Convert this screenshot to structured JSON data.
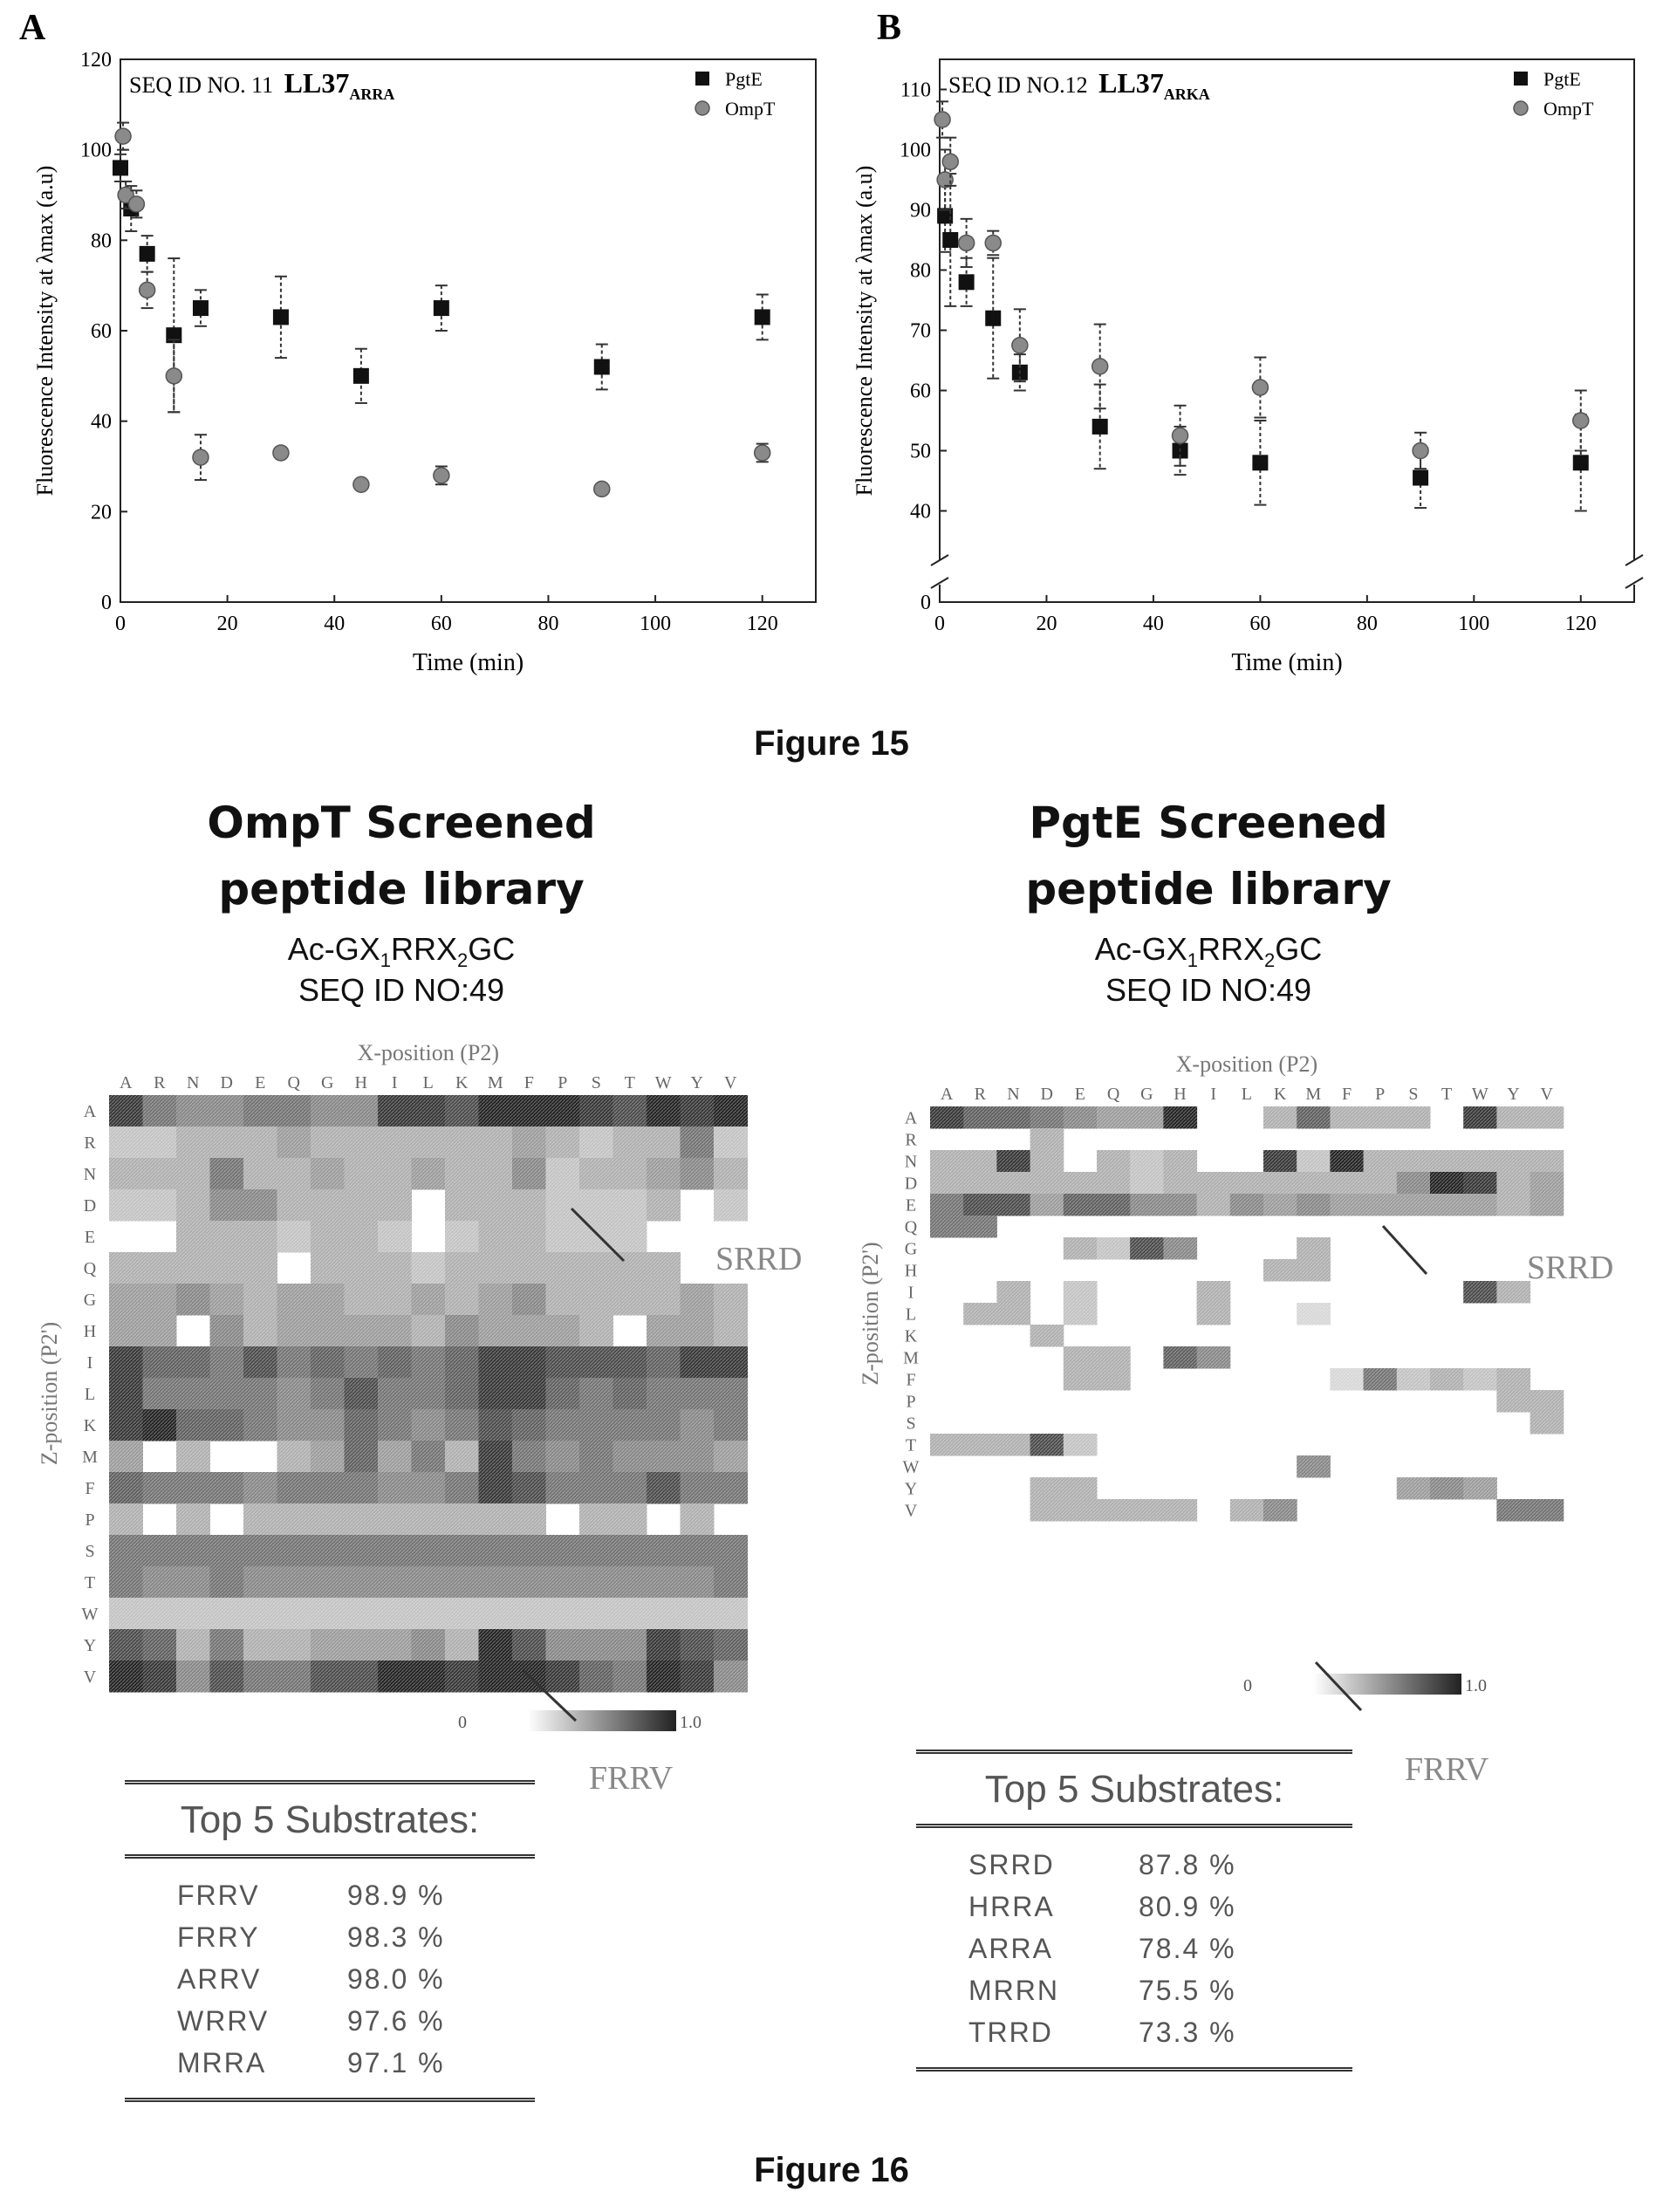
{
  "figure15": {
    "caption": "Figure 15",
    "colors": {
      "pgte": "#111111",
      "ompt": "#8a8a8a",
      "axis": "#222222"
    }
  },
  "chart_data": [
    {
      "type": "scatter",
      "panel_label": "A",
      "seq_label": "SEQ ID NO. 11",
      "peptide": "LL37",
      "peptide_sub": "ARRA",
      "xlabel": "Time (min)",
      "ylabel": "Fluorescence Intensity at λmax (a.u)",
      "xlim": [
        0,
        130
      ],
      "ylim": [
        0,
        120
      ],
      "xticks": [
        0,
        20,
        40,
        60,
        80,
        100,
        120
      ],
      "yticks": [
        0,
        20,
        40,
        60,
        80,
        100,
        120
      ],
      "legend": "top-right",
      "series": [
        {
          "name": "PgtE",
          "marker": "square",
          "x": [
            0,
            2,
            5,
            10,
            15,
            30,
            45,
            60,
            90,
            120
          ],
          "y": [
            96,
            87,
            77,
            59,
            65,
            63,
            50,
            65,
            52,
            63
          ],
          "err": [
            3,
            5,
            4,
            17,
            4,
            9,
            6,
            5,
            5,
            5
          ]
        },
        {
          "name": "OmpT",
          "marker": "circle",
          "x": [
            0.5,
            1,
            3,
            5,
            10,
            15,
            30,
            45,
            60,
            90,
            120
          ],
          "y": [
            103,
            90,
            88,
            69,
            50,
            32,
            33,
            26,
            28,
            25,
            33
          ],
          "err": [
            3,
            3,
            3,
            4,
            8,
            5,
            1,
            1,
            2,
            1,
            2
          ]
        }
      ]
    },
    {
      "type": "scatter",
      "panel_label": "B",
      "seq_label": "SEQ ID NO.12",
      "peptide": "LL37",
      "peptide_sub": "ARKA",
      "xlabel": "Time (min)",
      "ylabel": "Fluorescence Intensity at λmax (a.u)",
      "xlim": [
        0,
        130
      ],
      "ylim": [
        0,
        115
      ],
      "axis_break": true,
      "xticks": [
        0,
        20,
        40,
        60,
        80,
        100,
        120
      ],
      "yticks": [
        0,
        40,
        50,
        60,
        70,
        80,
        90,
        100,
        110
      ],
      "legend": "top-right",
      "series": [
        {
          "name": "PgtE",
          "marker": "square",
          "x": [
            1,
            2,
            5,
            10,
            15,
            30,
            45,
            60,
            90,
            120
          ],
          "y": [
            89,
            85,
            78,
            72,
            63,
            54,
            50,
            48,
            45.5,
            48
          ],
          "err": [
            6,
            11,
            4,
            10,
            3,
            7,
            4,
            7,
            5,
            8
          ]
        },
        {
          "name": "OmpT",
          "marker": "circle",
          "x": [
            0.5,
            1,
            2,
            5,
            10,
            15,
            30,
            45,
            60,
            90,
            120
          ],
          "y": [
            105,
            95,
            98,
            84.5,
            84.5,
            67.5,
            64,
            52.5,
            60.5,
            50,
            55
          ],
          "err": [
            3,
            5,
            4,
            4,
            2,
            6,
            7,
            5,
            5,
            3,
            5
          ]
        }
      ]
    }
  ],
  "figure16": {
    "caption": "Figure 16",
    "axis_letters": [
      "A",
      "R",
      "N",
      "D",
      "E",
      "Q",
      "G",
      "H",
      "I",
      "L",
      "K",
      "M",
      "F",
      "P",
      "S",
      "T",
      "W",
      "Y",
      "V"
    ],
    "x_axis_label": "X-position (P2)",
    "y_axis_label": "Z-position (P2')",
    "scale_min": "0",
    "scale_max": "1.0",
    "left": {
      "title_line1": "OmpT Screened",
      "title_line2": "peptide library",
      "formula": "Ac-GX1RRX2GC",
      "seq": "SEQ ID NO:49",
      "callout_top": "SRRD",
      "callout_bottom": "FRRV",
      "top_header": "Top 5 Substrates:",
      "top5": [
        {
          "seq": "FRRV",
          "pct": "98.9 %"
        },
        {
          "seq": "FRRY",
          "pct": "98.3 %"
        },
        {
          "seq": "ARRV",
          "pct": "98.0 %"
        },
        {
          "seq": "WRRV",
          "pct": "97.6 %"
        },
        {
          "seq": "MRRA",
          "pct": "97.1 %"
        }
      ],
      "heatmap": [
        [
          0.9,
          0.6,
          0.5,
          0.5,
          0.6,
          0.6,
          0.5,
          0.5,
          0.9,
          0.9,
          0.8,
          1.0,
          1.0,
          1.0,
          0.9,
          0.8,
          1.0,
          0.9,
          1.0
        ],
        [
          0.2,
          0.2,
          0.3,
          0.3,
          0.3,
          0.4,
          0.3,
          0.3,
          0.3,
          0.3,
          0.3,
          0.3,
          0.4,
          0.3,
          0.2,
          0.3,
          0.3,
          0.6,
          0.2
        ],
        [
          0.3,
          0.3,
          0.3,
          0.6,
          0.3,
          0.3,
          0.4,
          0.3,
          0.3,
          0.4,
          0.3,
          0.3,
          0.5,
          0.2,
          0.3,
          0.3,
          0.4,
          0.5,
          0.3
        ],
        [
          0.2,
          0.2,
          0.3,
          0.5,
          0.5,
          0.3,
          0.3,
          0.3,
          0.3,
          0.0,
          0.3,
          0.3,
          0.3,
          0.2,
          0.2,
          0.2,
          0.3,
          0.0,
          0.2
        ],
        [
          0.0,
          0.0,
          0.3,
          0.3,
          0.3,
          0.2,
          0.3,
          0.3,
          0.2,
          0.0,
          0.2,
          0.3,
          0.3,
          0.2,
          0.2,
          0.2,
          0.0,
          0.0,
          0.0
        ],
        [
          0.3,
          0.3,
          0.3,
          0.3,
          0.3,
          0.0,
          0.3,
          0.3,
          0.3,
          0.2,
          0.3,
          0.3,
          0.3,
          0.3,
          0.3,
          0.3,
          0.3,
          0.0,
          0.0
        ],
        [
          0.4,
          0.4,
          0.5,
          0.4,
          0.3,
          0.4,
          0.4,
          0.3,
          0.3,
          0.4,
          0.3,
          0.4,
          0.5,
          0.3,
          0.3,
          0.3,
          0.3,
          0.4,
          0.3
        ],
        [
          0.4,
          0.4,
          0.0,
          0.5,
          0.3,
          0.4,
          0.4,
          0.4,
          0.4,
          0.3,
          0.5,
          0.4,
          0.4,
          0.4,
          0.3,
          0.0,
          0.4,
          0.4,
          0.3
        ],
        [
          0.9,
          0.7,
          0.7,
          0.6,
          0.8,
          0.6,
          0.7,
          0.6,
          0.7,
          0.6,
          0.7,
          0.9,
          0.9,
          0.8,
          0.8,
          0.8,
          0.7,
          0.9,
          0.9
        ],
        [
          0.9,
          0.6,
          0.6,
          0.6,
          0.6,
          0.5,
          0.6,
          0.8,
          0.6,
          0.6,
          0.7,
          0.9,
          0.9,
          0.7,
          0.6,
          0.7,
          0.6,
          0.6,
          0.6
        ],
        [
          0.9,
          1.0,
          0.7,
          0.7,
          0.6,
          0.5,
          0.5,
          0.7,
          0.6,
          0.5,
          0.6,
          0.8,
          0.7,
          0.6,
          0.6,
          0.6,
          0.6,
          0.5,
          0.6
        ],
        [
          0.4,
          0.0,
          0.3,
          0.0,
          0.0,
          0.3,
          0.4,
          0.7,
          0.4,
          0.6,
          0.3,
          0.9,
          0.6,
          0.5,
          0.6,
          0.5,
          0.5,
          0.5,
          0.4
        ],
        [
          0.7,
          0.6,
          0.6,
          0.6,
          0.5,
          0.6,
          0.6,
          0.6,
          0.5,
          0.5,
          0.6,
          0.9,
          0.8,
          0.6,
          0.6,
          0.6,
          0.8,
          0.6,
          0.6
        ],
        [
          0.3,
          0.0,
          0.3,
          0.0,
          0.3,
          0.3,
          0.3,
          0.3,
          0.3,
          0.3,
          0.3,
          0.3,
          0.3,
          0.0,
          0.3,
          0.3,
          0.0,
          0.3,
          0.0
        ],
        [
          0.6,
          0.6,
          0.6,
          0.6,
          0.6,
          0.6,
          0.6,
          0.6,
          0.6,
          0.6,
          0.6,
          0.6,
          0.6,
          0.6,
          0.6,
          0.6,
          0.6,
          0.6,
          0.6
        ],
        [
          0.6,
          0.5,
          0.5,
          0.6,
          0.5,
          0.5,
          0.5,
          0.5,
          0.5,
          0.5,
          0.5,
          0.5,
          0.5,
          0.5,
          0.5,
          0.5,
          0.5,
          0.5,
          0.6
        ],
        [
          0.2,
          0.2,
          0.2,
          0.2,
          0.2,
          0.2,
          0.2,
          0.2,
          0.2,
          0.2,
          0.2,
          0.2,
          0.2,
          0.2,
          0.2,
          0.2,
          0.2,
          0.2,
          0.2
        ],
        [
          0.8,
          0.7,
          0.3,
          0.6,
          0.3,
          0.3,
          0.4,
          0.4,
          0.4,
          0.5,
          0.3,
          1.0,
          0.8,
          0.5,
          0.5,
          0.5,
          0.9,
          0.8,
          0.7
        ],
        [
          1.0,
          0.9,
          0.5,
          0.8,
          0.6,
          0.6,
          0.8,
          0.8,
          1.0,
          1.0,
          0.9,
          1.0,
          1.0,
          0.9,
          0.7,
          0.6,
          1.0,
          0.9,
          0.5
        ]
      ]
    },
    "right": {
      "title_line1": "PgtE Screened",
      "title_line2": "peptide library",
      "formula": "Ac-GX1RRX2GC",
      "seq": "SEQ ID NO:49",
      "callout_top": "SRRD",
      "callout_bottom": "FRRV",
      "top_header": "Top 5 Substrates:",
      "top5": [
        {
          "seq": "SRRD",
          "pct": "87.8 %"
        },
        {
          "seq": "HRRA",
          "pct": "80.9 %"
        },
        {
          "seq": "ARRA",
          "pct": "78.4 %"
        },
        {
          "seq": "MRRN",
          "pct": "75.5 %"
        },
        {
          "seq": "TRRD",
          "pct": "73.3 %"
        }
      ],
      "heatmap": [
        [
          0.9,
          0.7,
          0.7,
          0.6,
          0.5,
          0.4,
          0.4,
          1.0,
          0.0,
          0.0,
          0.3,
          0.7,
          0.3,
          0.3,
          0.3,
          0.0,
          0.9,
          0.3,
          0.3
        ],
        [
          0.0,
          0.0,
          0.0,
          0.3,
          0.0,
          0.0,
          0.0,
          0.0,
          0.0,
          0.0,
          0.0,
          0.0,
          0.0,
          0.0,
          0.0,
          0.0,
          0.0,
          0.0,
          0.0
        ],
        [
          0.3,
          0.3,
          0.9,
          0.3,
          0.0,
          0.3,
          0.2,
          0.3,
          0.0,
          0.0,
          0.9,
          0.2,
          1.0,
          0.3,
          0.3,
          0.3,
          0.3,
          0.3,
          0.3
        ],
        [
          0.3,
          0.3,
          0.3,
          0.3,
          0.3,
          0.3,
          0.2,
          0.3,
          0.3,
          0.3,
          0.3,
          0.3,
          0.3,
          0.3,
          0.5,
          1.0,
          0.9,
          0.3,
          0.4
        ],
        [
          0.6,
          0.8,
          0.8,
          0.4,
          0.7,
          0.7,
          0.5,
          0.5,
          0.3,
          0.5,
          0.4,
          0.5,
          0.4,
          0.4,
          0.4,
          0.4,
          0.4,
          0.3,
          0.4
        ],
        [
          0.6,
          0.6,
          0.0,
          0.0,
          0.0,
          0.0,
          0.0,
          0.0,
          0.0,
          0.0,
          0.0,
          0.0,
          0.0,
          0.0,
          0.0,
          0.0,
          0.0,
          0.0,
          0.0
        ],
        [
          0.0,
          0.0,
          0.0,
          0.0,
          0.3,
          0.2,
          0.8,
          0.5,
          0.0,
          0.0,
          0.0,
          0.3,
          0.0,
          0.0,
          0.0,
          0.0,
          0.0,
          0.0,
          0.0
        ],
        [
          0.0,
          0.0,
          0.0,
          0.0,
          0.0,
          0.0,
          0.0,
          0.0,
          0.0,
          0.0,
          0.3,
          0.3,
          0.0,
          0.0,
          0.0,
          0.0,
          0.0,
          0.0,
          0.0
        ],
        [
          0.0,
          0.0,
          0.3,
          0.0,
          0.2,
          0.0,
          0.0,
          0.0,
          0.3,
          0.0,
          0.0,
          0.0,
          0.0,
          0.0,
          0.0,
          0.0,
          0.8,
          0.3,
          0.0
        ],
        [
          0.0,
          0.3,
          0.3,
          0.0,
          0.2,
          0.0,
          0.0,
          0.0,
          0.3,
          0.0,
          0.0,
          0.1,
          0.0,
          0.0,
          0.0,
          0.0,
          0.0,
          0.0,
          0.0
        ],
        [
          0.0,
          0.0,
          0.0,
          0.3,
          0.0,
          0.0,
          0.0,
          0.0,
          0.0,
          0.0,
          0.0,
          0.0,
          0.0,
          0.0,
          0.0,
          0.0,
          0.0,
          0.0,
          0.0
        ],
        [
          0.0,
          0.0,
          0.0,
          0.0,
          0.3,
          0.3,
          0.0,
          0.7,
          0.5,
          0.0,
          0.0,
          0.0,
          0.0,
          0.0,
          0.0,
          0.0,
          0.0,
          0.0,
          0.0
        ],
        [
          0.0,
          0.0,
          0.0,
          0.0,
          0.3,
          0.3,
          0.0,
          0.0,
          0.0,
          0.0,
          0.0,
          0.0,
          0.1,
          0.6,
          0.2,
          0.3,
          0.2,
          0.3,
          0.0
        ],
        [
          0.0,
          0.0,
          0.0,
          0.0,
          0.0,
          0.0,
          0.0,
          0.0,
          0.0,
          0.0,
          0.0,
          0.0,
          0.0,
          0.0,
          0.0,
          0.0,
          0.0,
          0.3,
          0.3
        ],
        [
          0.0,
          0.0,
          0.0,
          0.0,
          0.0,
          0.0,
          0.0,
          0.0,
          0.0,
          0.0,
          0.0,
          0.0,
          0.0,
          0.0,
          0.0,
          0.0,
          0.0,
          0.0,
          0.3
        ],
        [
          0.3,
          0.3,
          0.3,
          0.8,
          0.2,
          0.0,
          0.0,
          0.0,
          0.0,
          0.0,
          0.0,
          0.0,
          0.0,
          0.0,
          0.0,
          0.0,
          0.0,
          0.0,
          0.0
        ],
        [
          0.0,
          0.0,
          0.0,
          0.0,
          0.0,
          0.0,
          0.0,
          0.0,
          0.0,
          0.0,
          0.0,
          0.5,
          0.0,
          0.0,
          0.0,
          0.0,
          0.0,
          0.0,
          0.0
        ],
        [
          0.0,
          0.0,
          0.0,
          0.3,
          0.3,
          0.0,
          0.0,
          0.0,
          0.0,
          0.0,
          0.0,
          0.0,
          0.0,
          0.0,
          0.4,
          0.5,
          0.4,
          0.0,
          0.0
        ],
        [
          0.0,
          0.0,
          0.0,
          0.3,
          0.3,
          0.3,
          0.3,
          0.3,
          0.0,
          0.3,
          0.5,
          0.0,
          0.0,
          0.0,
          0.0,
          0.0,
          0.0,
          0.6,
          0.6
        ]
      ]
    }
  }
}
